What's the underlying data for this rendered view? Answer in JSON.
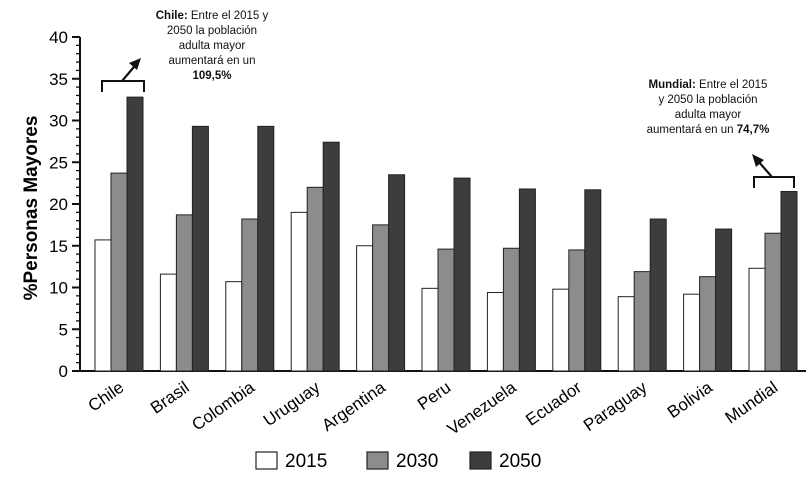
{
  "chart_data": {
    "type": "bar",
    "ylabel": "%Personas Mayores",
    "xlabel": "",
    "ylim": [
      0,
      40
    ],
    "yticks": [
      0,
      5,
      10,
      15,
      20,
      25,
      30,
      35,
      40
    ],
    "grid": false,
    "legend_position": "bottom",
    "categories": [
      "Chile",
      "Brasil",
      "Colombia",
      "Uruguay",
      "Argentina",
      "Peru",
      "Venezuela",
      "Ecuador",
      "Paraguay",
      "Bolivia",
      "Mundial"
    ],
    "series": [
      {
        "name": "2015",
        "color": "#ffffff",
        "values": [
          15.7,
          11.6,
          10.7,
          19.0,
          15.0,
          9.9,
          9.4,
          9.8,
          8.9,
          9.2,
          12.3
        ]
      },
      {
        "name": "2030",
        "color": "#8c8c8c",
        "values": [
          23.7,
          18.7,
          18.2,
          22.0,
          17.5,
          14.6,
          14.7,
          14.5,
          11.9,
          11.3,
          16.5
        ]
      },
      {
        "name": "2050",
        "color": "#3d3d3d",
        "values": [
          32.8,
          29.3,
          29.3,
          27.4,
          23.5,
          23.1,
          21.8,
          21.7,
          18.2,
          17.0,
          21.5
        ]
      }
    ],
    "annotations": {
      "chile": {
        "bold": "Chile:",
        "text_1": "Entre el 2015 y",
        "text_2": "2050 la población",
        "text_3": "adulta mayor",
        "text_4": "aumentará en un",
        "value": "109,5%"
      },
      "mundial": {
        "bold": "Mundial:",
        "text_1": "Entre el 2015",
        "text_2": "y 2050 la población",
        "text_3": "adulta mayor",
        "text_4": "aumentará en un",
        "value": "74,7%"
      }
    }
  }
}
